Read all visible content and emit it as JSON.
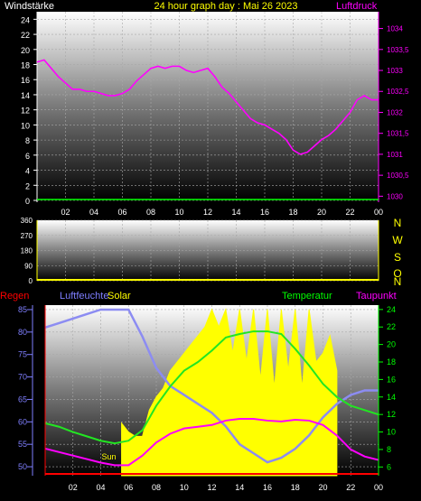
{
  "header": {
    "left_label": "Windstärke",
    "title": "24 hour graph day : Mai 26 2023",
    "right_label": "Luftdruck"
  },
  "compass": [
    "N",
    "W",
    "S",
    "O",
    "N"
  ],
  "legend": {
    "regen": "Regen",
    "luftfeuchte": "Luftfeuchte",
    "solar": "Solar",
    "temperatur": "Temperatur",
    "taupunkt": "Taupunkt",
    "sun": "Sun"
  },
  "colors": {
    "white": "#ffffff",
    "yellow": "#ffff00",
    "magenta": "#ff00ff",
    "green": "#00ff00",
    "red": "#ff0000",
    "blue": "#7f7fff",
    "humidity": "#8c8cf2",
    "temp": "#22e622",
    "dew": "#ff00ff",
    "solar": "#ffff00"
  },
  "chart_data": [
    {
      "type": "line",
      "name": "wind-pressure",
      "x_ticks": [
        "02",
        "04",
        "06",
        "08",
        "10",
        "12",
        "14",
        "16",
        "18",
        "20",
        "22",
        "00"
      ],
      "y_left_ticks": [
        "0",
        "2",
        "4",
        "6",
        "8",
        "10",
        "12",
        "14",
        "16",
        "18",
        "20",
        "22",
        "24"
      ],
      "y_left_lim": [
        0,
        25
      ],
      "y_right_ticks": [
        "1030",
        "1030,5",
        "1031",
        "1031,5",
        "1032",
        "1032,5",
        "1033",
        "1033,5",
        "1034"
      ],
      "y_right_lim": [
        1029.9,
        1034.4
      ],
      "series": [
        {
          "name": "Luftdruck",
          "axis": "right",
          "x": [
            0,
            0.5,
            1,
            1.5,
            2,
            2.5,
            3,
            3.5,
            4,
            4.5,
            5,
            5.5,
            6,
            6.5,
            7,
            7.5,
            8,
            8.5,
            9,
            9.5,
            10,
            10.5,
            11,
            11.5,
            12,
            12.5,
            13,
            13.5,
            14,
            14.5,
            15,
            15.5,
            16,
            16.5,
            17,
            17.5,
            18,
            18.5,
            19,
            19.5,
            20,
            20.5,
            21,
            21.5,
            22,
            22.5,
            23,
            23.5,
            24
          ],
          "y": [
            1033.2,
            1033.25,
            1033.05,
            1032.85,
            1032.7,
            1032.55,
            1032.55,
            1032.5,
            1032.5,
            1032.45,
            1032.4,
            1032.4,
            1032.45,
            1032.55,
            1032.75,
            1032.9,
            1033.05,
            1033.1,
            1033.05,
            1033.1,
            1033.1,
            1033.0,
            1032.95,
            1033.0,
            1033.05,
            1032.85,
            1032.6,
            1032.45,
            1032.25,
            1032.05,
            1031.85,
            1031.75,
            1031.7,
            1031.6,
            1031.5,
            1031.35,
            1031.1,
            1031.0,
            1031.05,
            1031.2,
            1031.35,
            1031.45,
            1031.6,
            1031.8,
            1032.0,
            1032.3,
            1032.4,
            1032.3,
            1032.3
          ]
        },
        {
          "name": "Windstärke",
          "axis": "left",
          "x": [
            0,
            24
          ],
          "y": [
            0,
            0
          ]
        }
      ]
    },
    {
      "type": "line",
      "name": "wind-direction",
      "y_ticks": [
        "0",
        "90",
        "180",
        "270",
        "360"
      ],
      "y_lim": [
        0,
        360
      ],
      "series": [
        {
          "name": "Windrichtung",
          "x": [
            0,
            24
          ],
          "y": [
            0,
            0
          ]
        }
      ]
    },
    {
      "type": "area",
      "name": "humidity-temperature-solar",
      "y_left_ticks": [
        "50",
        "55",
        "60",
        "65",
        "70",
        "75",
        "80",
        "85"
      ],
      "y_left_lim": [
        48,
        86
      ],
      "y_right_ticks": [
        "6",
        "8",
        "10",
        "12",
        "14",
        "16",
        "18",
        "20",
        "22",
        "24"
      ],
      "y_right_lim": [
        5,
        24.5
      ],
      "series": [
        {
          "name": "Luftfeuchte",
          "axis": "left",
          "x": [
            0,
            1,
            2,
            3,
            4,
            5,
            6,
            7,
            8,
            9,
            10,
            11,
            12,
            13,
            14,
            15,
            16,
            17,
            18,
            19,
            20,
            21,
            22,
            23,
            24
          ],
          "y": [
            81,
            82,
            83,
            84,
            85,
            85,
            85,
            79,
            72,
            68,
            66,
            64,
            62,
            59,
            55,
            53,
            51,
            52,
            54,
            57,
            61,
            64,
            66,
            67,
            67
          ]
        },
        {
          "name": "Temperatur",
          "axis": "right",
          "x": [
            0,
            1,
            2,
            3,
            4,
            5,
            6,
            7,
            8,
            9,
            10,
            11,
            12,
            13,
            14,
            15,
            16,
            17,
            18,
            19,
            20,
            21,
            22,
            23,
            24
          ],
          "y": [
            11,
            10.6,
            10,
            9.5,
            9,
            8.7,
            9,
            10.2,
            13,
            15.2,
            17,
            18,
            19.3,
            20.8,
            21.2,
            21.5,
            21.5,
            21.2,
            19.5,
            17.6,
            15.5,
            14,
            13,
            12.5,
            12
          ]
        },
        {
          "name": "Taupunkt",
          "axis": "right",
          "x": [
            0,
            1,
            2,
            3,
            4,
            5,
            6,
            7,
            8,
            9,
            10,
            11,
            12,
            13,
            14,
            15,
            16,
            17,
            18,
            19,
            20,
            21,
            22,
            23,
            24
          ],
          "y": [
            8.1,
            7.7,
            7.3,
            6.9,
            6.5,
            6.2,
            6.2,
            7.3,
            8.8,
            9.8,
            10.4,
            10.6,
            10.8,
            11.3,
            11.5,
            11.5,
            11.3,
            11.2,
            11.4,
            11.3,
            10.8,
            9.6,
            8.0,
            7.2,
            6.8
          ]
        },
        {
          "name": "Solar",
          "axis": "right",
          "x": [
            5.5,
            6,
            6.5,
            7,
            7.5,
            8,
            8.5,
            9,
            9.5,
            10,
            10.5,
            11,
            11.5,
            12,
            12.5,
            13,
            13.5,
            14,
            14.5,
            15,
            15.5,
            16,
            16.5,
            17,
            17.5,
            18,
            18.5,
            19,
            19.5,
            20,
            20.5,
            21
          ],
          "y": [
            11,
            10,
            9.5,
            9.5,
            12.5,
            14,
            15,
            17,
            18,
            19,
            20,
            21,
            22,
            24,
            22,
            24,
            19,
            24,
            18,
            24,
            16,
            24,
            15,
            24,
            17,
            24,
            15,
            24,
            18,
            19,
            21,
            17
          ]
        }
      ]
    }
  ]
}
